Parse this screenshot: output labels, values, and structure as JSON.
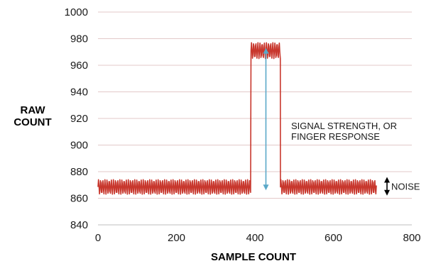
{
  "chart_data": {
    "type": "line",
    "title": "",
    "xlabel": "SAMPLE COUNT",
    "ylabel_lines": [
      "RAW",
      "COUNT"
    ],
    "xlim": [
      0,
      800
    ],
    "ylim": [
      840,
      1000
    ],
    "x_ticks": [
      0,
      200,
      400,
      600,
      800
    ],
    "y_ticks": [
      840,
      860,
      880,
      900,
      920,
      940,
      960,
      980,
      1000
    ],
    "grid": "horizontal",
    "series": [
      {
        "color": "#c8372d",
        "segments": [
          {
            "x_start": 0,
            "x_end": 390,
            "y_low": 863,
            "y_high": 874
          },
          {
            "x_start": 390,
            "x_end": 465,
            "y_low": 965,
            "y_high": 977
          },
          {
            "x_start": 465,
            "x_end": 710,
            "y_low": 863,
            "y_high": 874
          }
        ]
      }
    ],
    "annotations": [
      {
        "lines": [
          "SIGNAL STRENGTH, OR",
          "FINGER RESPONSE"
        ],
        "arrow_x": 428,
        "arrow_y_from": 866,
        "arrow_y_to": 973,
        "color": "#5aa8c8"
      },
      {
        "lines": [
          "NOISE"
        ],
        "arrow_x": 725,
        "arrow_y_from": 862,
        "arrow_y_to": 876,
        "color": "#000000"
      }
    ]
  }
}
